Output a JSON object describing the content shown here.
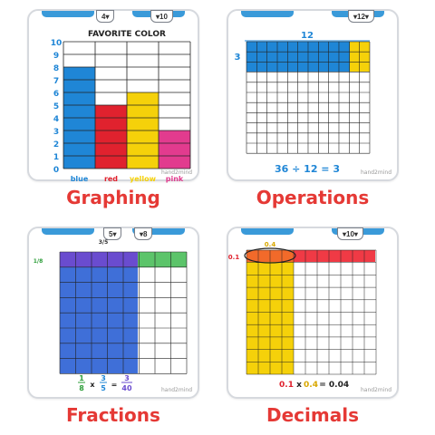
{
  "graphing": {
    "tab_left": "4",
    "tab_right": "10",
    "title": "FAVORITE COLOR",
    "y_ticks": [
      "10",
      "9",
      "8",
      "7",
      "6",
      "5",
      "4",
      "3",
      "2",
      "1",
      "0"
    ],
    "bars": [
      {
        "label": "blue",
        "value": 8,
        "color": "#1f86d6"
      },
      {
        "label": "red",
        "value": 5,
        "color": "#e0222e"
      },
      {
        "label": "yellow",
        "value": 6,
        "color": "#f5d10a"
      },
      {
        "label": "pink",
        "value": 3,
        "color": "#e23b8e"
      }
    ],
    "caption": "Graphing"
  },
  "operations": {
    "tab": "12",
    "top_number": "12",
    "side_number": "3",
    "equation": "36 ÷ 12 = 3",
    "caption": "Operations"
  },
  "fractions": {
    "tab_left": "5",
    "tab_right": "8",
    "top_fraction": "3/5",
    "side_fraction": "1/8",
    "eq_a_num": "1",
    "eq_a_den": "8",
    "eq_op": "x",
    "eq_b_num": "3",
    "eq_b_den": "5",
    "eq_eq": "=",
    "eq_c_num": "3",
    "eq_c_den": "40",
    "caption": "Fractions"
  },
  "decimals": {
    "tab": "10",
    "top_number": "0.4",
    "side_number": "0.1",
    "eq_a": "0.1",
    "eq_op": "x",
    "eq_b": "0.4",
    "eq_eq": "=",
    "eq_c": "0.04",
    "caption": "Decimals"
  },
  "logo_text": "hand2mind"
}
